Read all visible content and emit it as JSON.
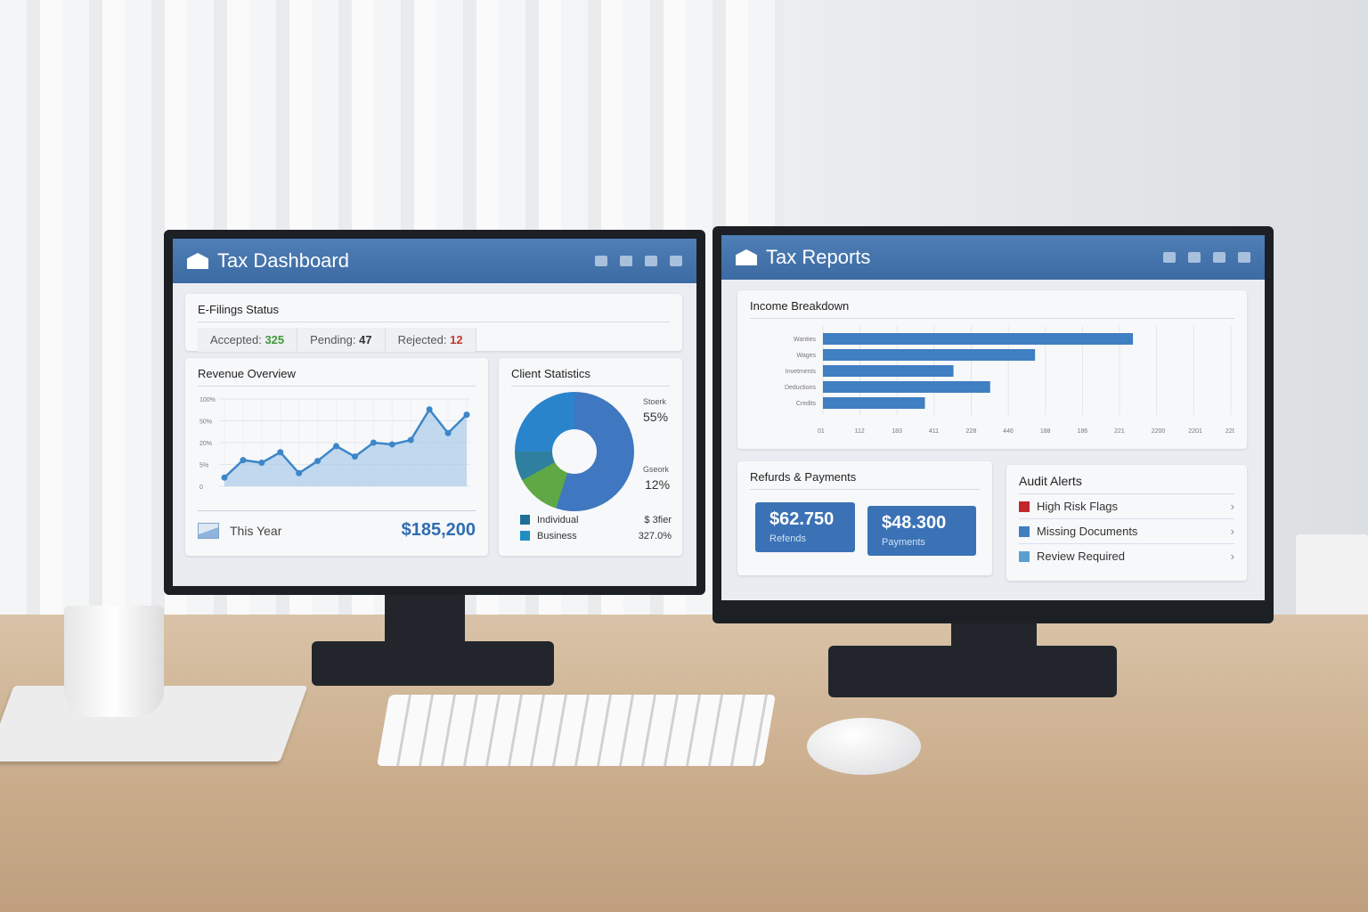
{
  "left_monitor": {
    "title": "Tax Dashboard",
    "efilings": {
      "title": "E-Filings Status",
      "accepted_label": "Accepted",
      "accepted": "325",
      "pending_label": "Pending",
      "pending": "47",
      "rejected_label": "Rejected",
      "rejected": "12"
    },
    "revenue": {
      "title": "Revenue Overview",
      "period_label": "This Year",
      "total": "$185,200"
    },
    "clients": {
      "title": "Client Statistics",
      "label_a": "Stoerk",
      "pct_a": "55%",
      "label_b": "Gseork",
      "pct_b": "12%",
      "legend": [
        {
          "label": "Individual",
          "value": "$ 3fier",
          "color": "#1f6f9a"
        },
        {
          "label": "Business",
          "value": "327.0%",
          "color": "#1f8dc2"
        }
      ]
    }
  },
  "right_monitor": {
    "title": "Tax Reports",
    "income": {
      "title": "Income Breakdown"
    },
    "refunds": {
      "title": "Refurds & Payments",
      "refunds_value": "$62.750",
      "refunds_label": "Refends",
      "payments_value": "$48.300",
      "payments_label": "Payments"
    },
    "audit": {
      "title": "Audit Alerts",
      "items": [
        {
          "label": "High Risk Flags",
          "color": "#c0282d"
        },
        {
          "label": "Missing Documents",
          "color": "#3f7fbf"
        },
        {
          "label": "Review Required",
          "color": "#5a9fcf"
        }
      ]
    }
  },
  "chart_data": [
    {
      "type": "line",
      "title": "Revenue Overview",
      "yticks": [
        "100%",
        "50%",
        "20%",
        "5%",
        "0"
      ],
      "values": [
        10,
        30,
        27,
        39,
        15,
        29,
        46,
        34,
        50,
        48,
        53,
        88,
        61,
        82
      ],
      "color": "#3d86c9",
      "grid": true
    },
    {
      "type": "pie",
      "title": "Client Statistics",
      "slices": [
        {
          "label": "Stoerk",
          "value": 55,
          "color": "#3f77c0"
        },
        {
          "label": "Gseork",
          "value": 12,
          "color": "#5fa845"
        },
        {
          "label": "",
          "value": 8,
          "color": "#2f7fa0"
        },
        {
          "label": "",
          "value": 25,
          "color": "#2a84cc"
        }
      ]
    },
    {
      "type": "bar",
      "orientation": "horizontal",
      "title": "Income Breakdown",
      "categories": [
        "Wanties",
        "Wages",
        "Invetments",
        "Deductions",
        "Credits"
      ],
      "values": [
        76,
        52,
        32,
        41,
        25
      ],
      "xticks": [
        "01",
        "112",
        "183",
        "411",
        "228",
        "446",
        "188",
        "186",
        "221",
        "2200",
        "2201",
        "2201"
      ],
      "color": "#3f7fc2",
      "grid": true
    }
  ]
}
